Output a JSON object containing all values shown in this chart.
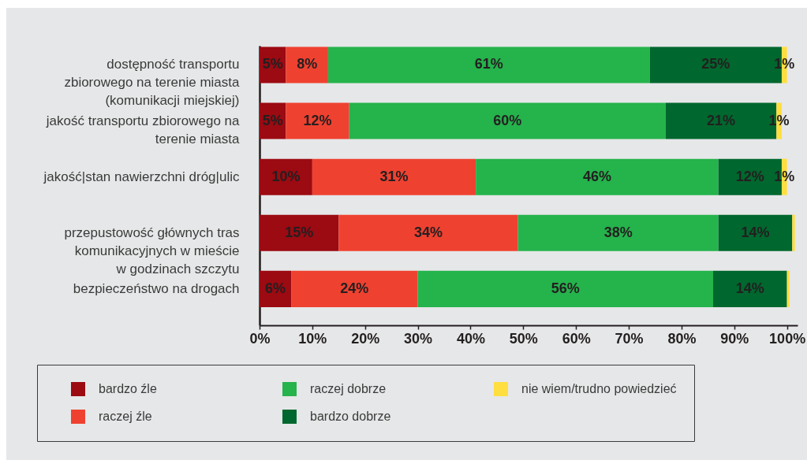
{
  "chart_data": {
    "type": "bar",
    "orientation": "horizontal",
    "stacked": true,
    "categories": [
      "dostępność transportu\nzbiorowego na terenie miasta\n(komunikacji miejskiej)",
      "jakość transportu zbiorowego na\nterenie miasta",
      "jakość|stan nawierzchni dróg|ulic",
      "przepustowość głównych tras\nkomunikacyjnych w mieście\nw godzinach szczytu",
      "bezpieczeństwo na drogach"
    ],
    "series": [
      {
        "name": "bardzo źle",
        "color": "#9c0a12",
        "values": [
          5,
          5,
          10,
          15,
          6
        ],
        "value_labels": [
          "5%",
          "5%",
          "10%",
          "15%",
          "6%"
        ]
      },
      {
        "name": "raczej źle",
        "color": "#ef4130",
        "values": [
          8,
          12,
          31,
          34,
          24
        ],
        "value_labels": [
          "8%",
          "12%",
          "31%",
          "34%",
          "24%"
        ]
      },
      {
        "name": "raczej dobrze",
        "color": "#25b34c",
        "values": [
          61,
          60,
          46,
          38,
          56
        ],
        "value_labels": [
          "61%",
          "60%",
          "46%",
          "38%",
          "56%"
        ]
      },
      {
        "name": "bardzo dobrze",
        "color": "#00672e",
        "values": [
          25,
          21,
          12,
          14,
          14
        ],
        "value_labels": [
          "25%",
          "21%",
          "12%",
          "14%",
          "14%"
        ]
      },
      {
        "name": "nie wiem/trudno powiedzieć",
        "color": "#ffde40",
        "values": [
          1,
          1,
          1,
          0.5,
          0.5
        ],
        "value_labels": [
          "1%",
          "1%",
          "1%",
          null,
          null
        ]
      }
    ],
    "xlim": [
      0,
      102
    ],
    "xticks": [
      {
        "value": 0,
        "label": "0%"
      },
      {
        "value": 10,
        "label": "10%"
      },
      {
        "value": 20,
        "label": "20%"
      },
      {
        "value": 30,
        "label": "30%"
      },
      {
        "value": 40,
        "label": "40%"
      },
      {
        "value": 50,
        "label": "50%"
      },
      {
        "value": 60,
        "label": "60%"
      },
      {
        "value": 70,
        "label": "70%"
      },
      {
        "value": 80,
        "label": "80%"
      },
      {
        "value": 90,
        "label": "90%"
      },
      {
        "value": 100,
        "label": "100%"
      }
    ],
    "legend": "bottom"
  }
}
